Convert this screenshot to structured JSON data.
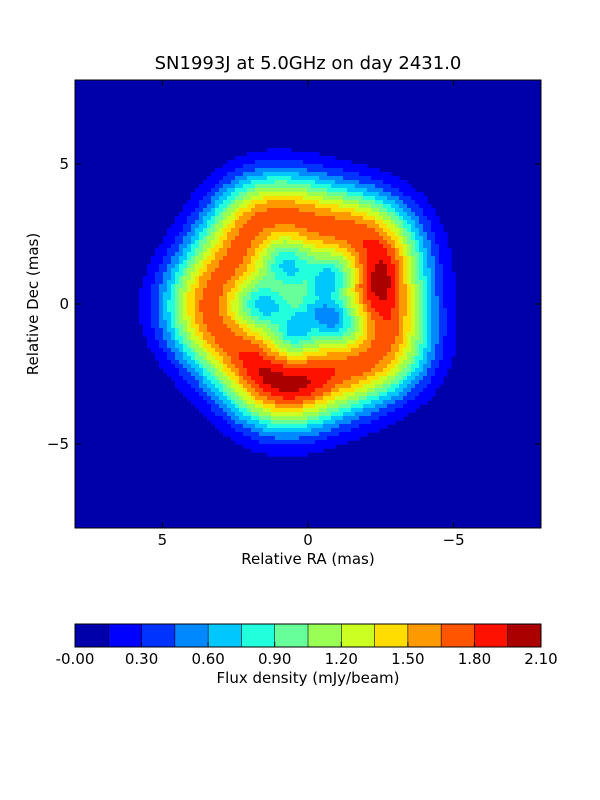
{
  "chart_data": {
    "type": "heatmap",
    "title": "SN1993J at 5.0GHz on day 2431.0",
    "xlabel": "Relative RA (mas)",
    "ylabel": "Relative Dec (mas)",
    "xlim": [
      8.0,
      -8.0
    ],
    "ylim": [
      -8.0,
      8.0
    ],
    "x_ticks": [
      5,
      0,
      -5
    ],
    "x_tick_labels": [
      "5",
      "0",
      "−5"
    ],
    "y_ticks": [
      5,
      0,
      -5
    ],
    "y_tick_labels": [
      "5",
      "0",
      "−5"
    ],
    "colorbar": {
      "label": "Flux density (mJy/beam)",
      "levels": [
        0.0,
        0.15,
        0.3,
        0.45,
        0.6,
        0.75,
        0.9,
        1.05,
        1.2,
        1.35,
        1.5,
        1.65,
        1.8,
        1.95,
        2.1
      ],
      "tick_values": [
        0.0,
        0.3,
        0.6,
        0.9,
        1.2,
        1.5,
        1.8,
        2.1
      ],
      "tick_labels": [
        "-0.00",
        "0.30",
        "0.60",
        "0.90",
        "1.20",
        "1.50",
        "1.80",
        "2.10"
      ],
      "colors": [
        "#0000aa",
        "#0000ff",
        "#0033ff",
        "#0088ff",
        "#00c8ff",
        "#22ffdd",
        "#66ff99",
        "#99ff55",
        "#ccff22",
        "#ffdd00",
        "#ff9900",
        "#ff5500",
        "#ff1100",
        "#aa0000"
      ]
    },
    "structure": {
      "shell_outer_radius": 5.2,
      "shell_inner_radius": 3.6,
      "center_peak": {
        "ra": 0.4,
        "dec": 0.3,
        "flux": 1.15
      },
      "hotspots": [
        {
          "ra": -2.1,
          "dec": 0.8,
          "flux": 1.95
        },
        {
          "ra": 0.7,
          "dec": -2.1,
          "flux": 2.05
        }
      ]
    },
    "grid": false
  }
}
